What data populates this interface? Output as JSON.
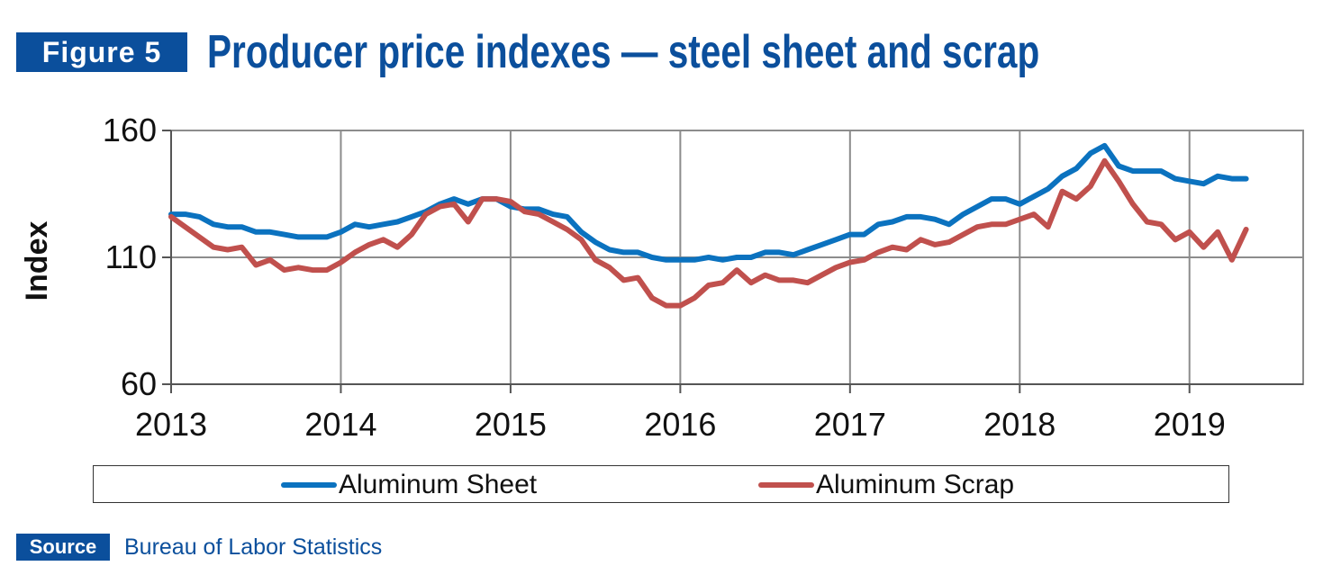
{
  "header": {
    "figure_label": "Figure 5",
    "title": "Producer price indexes — steel sheet and scrap"
  },
  "source": {
    "label": "Source",
    "text": "Bureau of Labor Statistics"
  },
  "colors": {
    "brand": "#0b4f9c",
    "series_sheet": "#0b72bf",
    "series_scrap": "#c0504d",
    "grid": "#8c8c8c"
  },
  "chart_data": {
    "type": "line",
    "title": "Producer price indexes — steel sheet and scrap",
    "ylabel": "Index",
    "xlabel": "",
    "ylim": [
      60,
      160
    ],
    "xlim": [
      2013,
      2019.67
    ],
    "yticks": [
      60,
      110,
      160
    ],
    "xticks": [
      2013,
      2014,
      2015,
      2016,
      2017,
      2018,
      2019
    ],
    "ytick_labels": [
      "60",
      "110",
      "160"
    ],
    "xtick_labels": [
      "2013",
      "2014",
      "2015",
      "2016",
      "2017",
      "2018",
      "2019"
    ],
    "grid": true,
    "legend_position": "bottom",
    "x_start": "2013-01",
    "x_step": "month",
    "series": [
      {
        "name": "Aluminum Sheet",
        "color": "#0b72bf",
        "values": [
          127,
          127,
          126,
          123,
          122,
          122,
          120,
          120,
          119,
          118,
          118,
          118,
          120,
          123,
          122,
          123,
          124,
          126,
          128,
          131,
          133,
          131,
          133,
          133,
          130,
          129,
          129,
          127,
          126,
          120,
          116,
          113,
          112,
          112,
          110,
          109,
          109,
          109,
          110,
          109,
          110,
          110,
          112,
          112,
          111,
          113,
          115,
          117,
          119,
          119,
          123,
          124,
          126,
          126,
          125,
          123,
          127,
          130,
          133,
          133,
          131,
          134,
          137,
          142,
          145,
          151,
          154,
          146,
          144,
          144,
          144,
          141,
          140,
          139,
          142,
          141,
          141
        ]
      },
      {
        "name": "Aluminum Scrap",
        "color": "#c0504d",
        "values": [
          126,
          122,
          118,
          114,
          113,
          114,
          107,
          109,
          105,
          106,
          105,
          105,
          108,
          112,
          115,
          117,
          114,
          119,
          127,
          130,
          131,
          124,
          133,
          133,
          132,
          128,
          127,
          124,
          121,
          117,
          109,
          106,
          101,
          102,
          94,
          91,
          91,
          94,
          99,
          100,
          105,
          100,
          103,
          101,
          101,
          100,
          103,
          106,
          108,
          109,
          112,
          114,
          113,
          117,
          115,
          116,
          119,
          122,
          123,
          123,
          125,
          127,
          122,
          136,
          133,
          138,
          148,
          140,
          131,
          124,
          123,
          117,
          120,
          114,
          120,
          109,
          121
        ]
      }
    ]
  }
}
